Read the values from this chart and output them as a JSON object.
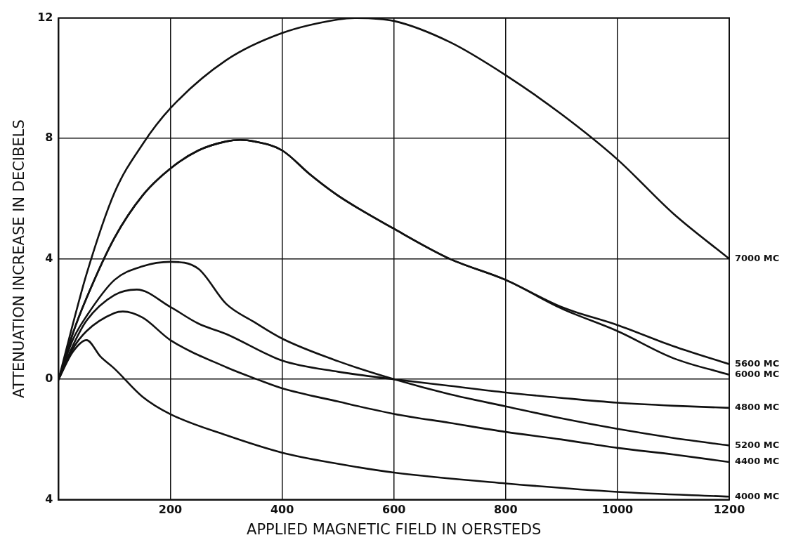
{
  "chart_data": {
    "type": "line",
    "xlabel": "APPLIED MAGNETIC FIELD IN OERSTEDS",
    "ylabel": "ATTENUATION INCREASE IN DECIBELS",
    "xlim": [
      0,
      1200
    ],
    "xticks": [
      200,
      400,
      600,
      800,
      1000,
      1200
    ],
    "ylim": [
      -4,
      12
    ],
    "yticks": [
      12,
      8,
      4,
      0,
      {
        "value": -4,
        "label": "4"
      }
    ],
    "grid": true,
    "legend": false,
    "marker": "none",
    "line_style": "solid",
    "series": [
      {
        "name": "7000 MC",
        "color": "#111111",
        "x": [
          0,
          25,
          50,
          100,
          150,
          200,
          300,
          400,
          500,
          530,
          600,
          700,
          800,
          900,
          1000,
          1100,
          1200
        ],
        "values": [
          0,
          1.8,
          3.5,
          6.2,
          7.8,
          9.0,
          10.6,
          11.5,
          11.95,
          12.0,
          11.9,
          11.2,
          10.1,
          8.8,
          7.3,
          5.5,
          4.0
        ]
      },
      {
        "name": "5600 MC",
        "color": "#111111",
        "x": [
          0,
          25,
          50,
          100,
          150,
          200,
          250,
          300,
          325,
          350,
          400,
          450,
          500,
          600,
          700,
          800,
          900,
          1000,
          1100,
          1200
        ],
        "values": [
          0,
          1.5,
          2.7,
          4.7,
          6.1,
          7.0,
          7.6,
          7.9,
          7.95,
          7.9,
          7.6,
          6.8,
          6.1,
          5.0,
          4.0,
          3.3,
          2.4,
          1.8,
          1.1,
          0.5
        ]
      },
      {
        "name": "6000 MC",
        "color": "#111111",
        "x": [
          0,
          25,
          50,
          100,
          150,
          200,
          250,
          300,
          325,
          350,
          400,
          450,
          500,
          600,
          700,
          800,
          900,
          1000,
          1100,
          1200
        ],
        "values": [
          0,
          1.5,
          2.7,
          4.7,
          6.1,
          7.0,
          7.6,
          7.9,
          7.95,
          7.9,
          7.6,
          6.8,
          6.1,
          5.0,
          4.0,
          3.3,
          2.35,
          1.6,
          0.7,
          0.15
        ]
      },
      {
        "name": "4800 MC",
        "color": "#111111",
        "x": [
          0,
          25,
          50,
          100,
          140,
          200,
          250,
          300,
          400,
          500,
          600,
          700,
          800,
          900,
          1000,
          1100,
          1200
        ],
        "values": [
          0,
          1.1,
          1.95,
          2.8,
          2.98,
          2.4,
          1.85,
          1.5,
          0.62,
          0.25,
          0,
          -0.22,
          -0.44,
          -0.62,
          -0.78,
          -0.88,
          -0.95
        ]
      },
      {
        "name": "5200 MC",
        "color": "#111111",
        "x": [
          0,
          25,
          50,
          100,
          150,
          200,
          250,
          300,
          350,
          400,
          500,
          600,
          700,
          800,
          900,
          1000,
          1100,
          1200
        ],
        "values": [
          0,
          1.3,
          2.1,
          3.3,
          3.75,
          3.9,
          3.67,
          2.5,
          1.9,
          1.35,
          0.6,
          0,
          -0.5,
          -0.9,
          -1.3,
          -1.65,
          -1.95,
          -2.2
        ]
      },
      {
        "name": "4400 MC",
        "color": "#111111",
        "x": [
          0,
          25,
          50,
          100,
          115,
          150,
          200,
          300,
          355,
          400,
          500,
          600,
          700,
          800,
          900,
          1000,
          1100,
          1200
        ],
        "values": [
          0,
          1.0,
          1.6,
          2.2,
          2.25,
          2.05,
          1.3,
          0.4,
          0,
          -0.3,
          -0.74,
          -1.15,
          -1.45,
          -1.75,
          -2.0,
          -2.28,
          -2.5,
          -2.75
        ]
      },
      {
        "name": "4000 MC",
        "color": "#111111",
        "x": [
          0,
          25,
          50,
          75,
          100,
          150,
          200,
          300,
          400,
          500,
          600,
          800,
          1000,
          1200
        ],
        "values": [
          0,
          0.9,
          1.3,
          0.75,
          0.35,
          -0.58,
          -1.16,
          -1.86,
          -2.44,
          -2.81,
          -3.1,
          -3.46,
          -3.74,
          -3.9
        ]
      }
    ]
  }
}
